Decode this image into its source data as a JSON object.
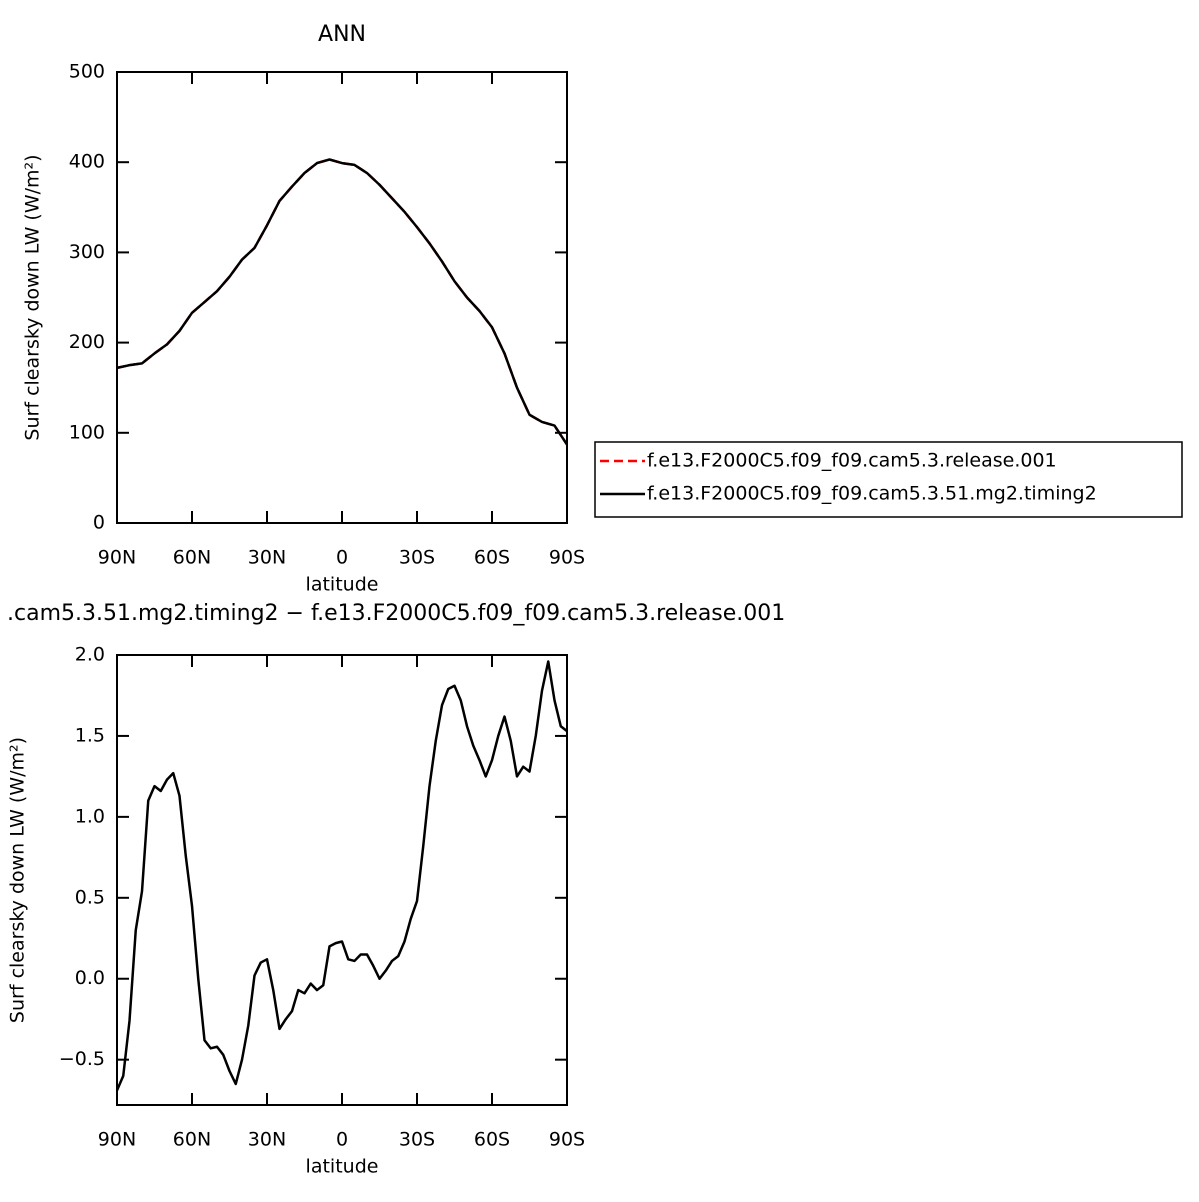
{
  "chart_data": [
    {
      "type": "line",
      "title": "ANN",
      "xlabel": "latitude",
      "ylabel": "Surf clearsky down LW (W/m²)",
      "x": [
        90,
        85,
        80,
        75,
        70,
        65,
        60,
        55,
        50,
        45,
        40,
        35,
        30,
        25,
        20,
        15,
        10,
        5,
        0,
        -5,
        -10,
        -15,
        -20,
        -25,
        -30,
        -35,
        -40,
        -45,
        -50,
        -55,
        -60,
        -65,
        -70,
        -75,
        -80,
        -85,
        -90
      ],
      "series": [
        {
          "name": "f.e13.F2000C5.f09_f09.cam5.3.release.001",
          "color": "#ff0000",
          "line_style": "dashed",
          "values": [
            172,
            175,
            177,
            188,
            198,
            213,
            233,
            245,
            257,
            273,
            292,
            305,
            330,
            357,
            373,
            388,
            399,
            403,
            399,
            397,
            388,
            375,
            360,
            345,
            328,
            310,
            290,
            268,
            250,
            235,
            217,
            188,
            150,
            120,
            112,
            108,
            87
          ]
        },
        {
          "name": "f.e13.F2000C5.f09_f09.cam5.3.51.mg2.timing2",
          "color": "#000000",
          "line_style": "solid",
          "values": [
            172,
            175,
            177,
            188,
            198,
            213,
            233,
            245,
            257,
            273,
            292,
            305,
            330,
            357,
            373,
            388,
            399,
            403,
            399,
            397,
            388,
            375,
            360,
            345,
            328,
            310,
            290,
            268,
            250,
            235,
            217,
            188,
            150,
            120,
            112,
            108,
            87
          ]
        }
      ],
      "xlim": [
        90,
        -90
      ],
      "xticks": [
        {
          "value": 90,
          "label": "90N"
        },
        {
          "value": 60,
          "label": "60N"
        },
        {
          "value": 30,
          "label": "30N"
        },
        0,
        {
          "value": -30,
          "label": "30S"
        },
        {
          "value": -60,
          "label": "60S"
        },
        {
          "value": -90,
          "label": "90S"
        }
      ],
      "ylim": [
        0,
        500
      ],
      "yticks": [
        0,
        100,
        200,
        300,
        400,
        500
      ],
      "grid": false,
      "legend_position": "right"
    },
    {
      "type": "line",
      "title": ".cam5.3.51.mg2.timing2 − f.e13.F2000C5.f09_f09.cam5.3.release.001",
      "xlabel": "latitude",
      "ylabel": "Surf clearsky down LW (W/m²)",
      "x": [
        90,
        87.5,
        85,
        82.5,
        80,
        77.5,
        75,
        72.5,
        70,
        67.5,
        65,
        62.5,
        60,
        57.5,
        55,
        52.5,
        50,
        47.5,
        45,
        42.5,
        40,
        37.5,
        35,
        32.5,
        30,
        27.5,
        25,
        22.5,
        20,
        17.5,
        15,
        12.5,
        10,
        7.5,
        5,
        2.5,
        0,
        -2.5,
        -5,
        -7.5,
        -10,
        -12.5,
        -15,
        -17.5,
        -20,
        -22.5,
        -25,
        -27.5,
        -30,
        -32.5,
        -35,
        -37.5,
        -40,
        -42.5,
        -45,
        -47.5,
        -50,
        -52.5,
        -55,
        -57.5,
        -60,
        -62.5,
        -65,
        -67.5,
        -70,
        -72.5,
        -75,
        -77.5,
        -80,
        -82.5,
        -85,
        -87.5,
        -90
      ],
      "series": [
        {
          "color": "#000000",
          "line_style": "solid",
          "values": [
            -0.69,
            -0.6,
            -0.26,
            0.3,
            0.54,
            1.1,
            1.19,
            1.16,
            1.23,
            1.27,
            1.13,
            0.76,
            0.45,
            0,
            -0.38,
            -0.43,
            -0.42,
            -0.47,
            -0.57,
            -0.65,
            -0.5,
            -0.29,
            0.02,
            0.1,
            0.12,
            -0.07,
            -0.31,
            -0.25,
            -0.2,
            -0.07,
            -0.09,
            -0.03,
            -0.07,
            -0.04,
            0.2,
            0.22,
            0.23,
            0.12,
            0.11,
            0.15,
            0.15,
            0.08,
            0,
            0.05,
            0.11,
            0.14,
            0.23,
            0.37,
            0.48,
            0.82,
            1.19,
            1.47,
            1.69,
            1.79,
            1.81,
            1.72,
            1.56,
            1.44,
            1.35,
            1.25,
            1.35,
            1.5,
            1.62,
            1.47,
            1.25,
            1.31,
            1.28,
            1.5,
            1.78,
            1.96,
            1.72,
            1.56,
            1.53
          ]
        }
      ],
      "xlim": [
        90,
        -90
      ],
      "xticks": [
        {
          "value": 90,
          "label": "90N"
        },
        {
          "value": 60,
          "label": "60N"
        },
        {
          "value": 30,
          "label": "30N"
        },
        0,
        {
          "value": -30,
          "label": "30S"
        },
        {
          "value": -60,
          "label": "60S"
        },
        {
          "value": -90,
          "label": "90S"
        }
      ],
      "ylim": [
        -0.78,
        2.0
      ],
      "yticks": [
        {
          "value": -0.5,
          "label": "−0.5"
        },
        {
          "value": 0,
          "label": "0.0"
        },
        0.5,
        {
          "value": 1,
          "label": "1.0"
        },
        1.5,
        {
          "value": 2,
          "label": "2.0"
        }
      ],
      "grid": false
    }
  ]
}
